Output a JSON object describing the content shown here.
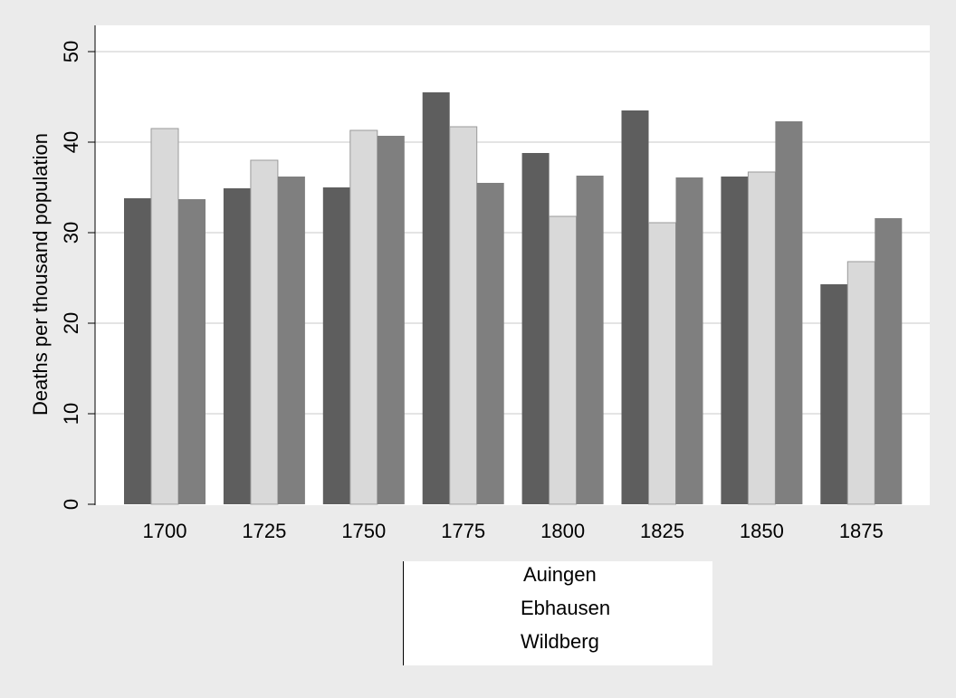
{
  "chart_data": {
    "type": "bar",
    "ylabel": "Deaths per thousand population",
    "xlabel": "",
    "ylim": [
      0,
      50
    ],
    "yticks": [
      "0",
      "10",
      "20",
      "30",
      "40",
      "50"
    ],
    "grid": true,
    "legend_position": "bottom",
    "categories": [
      "1700",
      "1725",
      "1750",
      "1775",
      "1800",
      "1825",
      "1850",
      "1875"
    ],
    "series": [
      {
        "name": "Auingen",
        "color": "#5e5e5e",
        "values": [
          33.8,
          34.9,
          35.0,
          45.5,
          38.8,
          43.5,
          36.2,
          24.3
        ]
      },
      {
        "name": "Ebhausen",
        "color": "#d9d9d9",
        "values": [
          41.5,
          38.0,
          41.3,
          41.7,
          31.8,
          31.1,
          36.7,
          26.8
        ]
      },
      {
        "name": "Wildberg",
        "color": "#7f7f7f",
        "values": [
          33.7,
          36.2,
          40.7,
          35.5,
          36.3,
          36.1,
          42.3,
          31.6
        ]
      }
    ]
  },
  "colors": {
    "background": "#ebebeb",
    "plot_background": "#ffffff",
    "gridline": "#e4e4e4"
  }
}
